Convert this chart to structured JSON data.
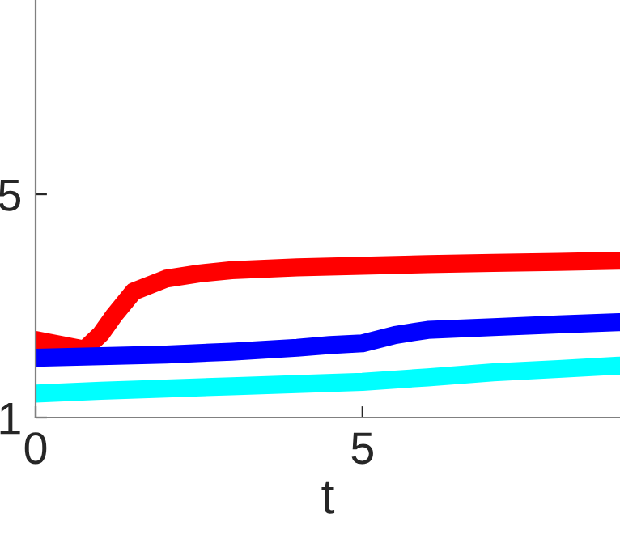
{
  "chart_data": {
    "type": "line",
    "xlabel": "t",
    "xlim": [
      0,
      8.94
    ],
    "ylim": [
      1,
      8.48
    ],
    "xticks": [
      0,
      5
    ],
    "yticks": [
      1,
      5
    ],
    "grid": false,
    "legend": false,
    "line_style": "solid",
    "series": [
      {
        "color": "#ff0000",
        "x": [
          0,
          0.4,
          0.75,
          1.0,
          1.2,
          1.5,
          2,
          2.5,
          3,
          4,
          5,
          6,
          7,
          8,
          8.94
        ],
        "values": [
          2.39,
          2.3,
          2.22,
          2.5,
          2.83,
          3.26,
          3.49,
          3.58,
          3.64,
          3.69,
          3.72,
          3.75,
          3.77,
          3.79,
          3.81
        ]
      },
      {
        "color": "#0000ff",
        "x": [
          0,
          1,
          2,
          3,
          4,
          4.5,
          5,
          5.5,
          6,
          7,
          8,
          8.94
        ],
        "values": [
          2.07,
          2.1,
          2.13,
          2.18,
          2.25,
          2.3,
          2.33,
          2.48,
          2.57,
          2.62,
          2.67,
          2.71
        ]
      },
      {
        "color": "#00ffff",
        "x": [
          0,
          1,
          2,
          3,
          4,
          5,
          6,
          7,
          8,
          8.94
        ],
        "values": [
          1.43,
          1.48,
          1.52,
          1.56,
          1.6,
          1.64,
          1.72,
          1.81,
          1.87,
          1.93
        ]
      }
    ]
  }
}
